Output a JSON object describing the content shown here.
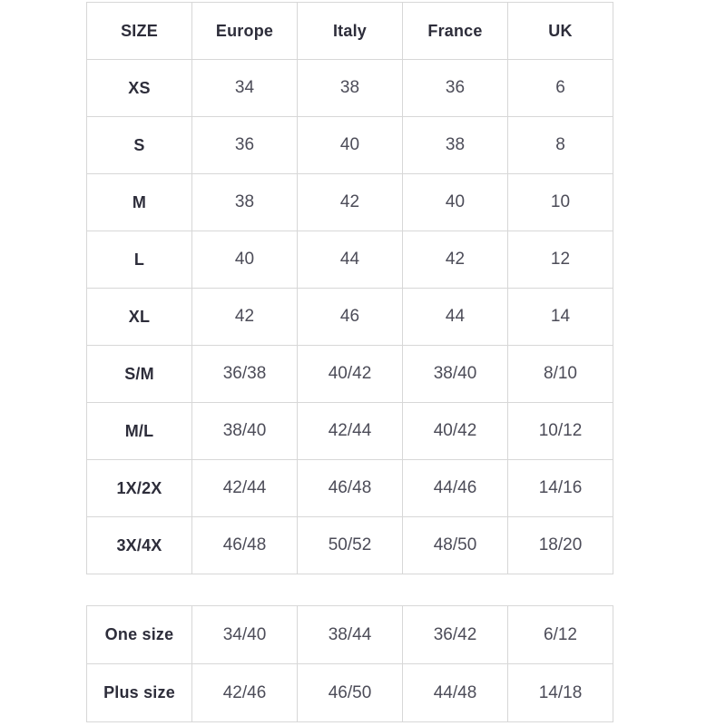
{
  "colors": {
    "border": "#d7d7d7",
    "header_text": "#2d2d3a",
    "value_text": "#4c4c58",
    "background": "#ffffff"
  },
  "chart_data": [
    {
      "type": "table",
      "name": "size-conversion-table",
      "columns": [
        "SIZE",
        "Europe",
        "Italy",
        "France",
        "UK"
      ],
      "rows": [
        [
          "XS",
          "34",
          "38",
          "36",
          "6"
        ],
        [
          "S",
          "36",
          "40",
          "38",
          "8"
        ],
        [
          "M",
          "38",
          "42",
          "40",
          "10"
        ],
        [
          "L",
          "40",
          "44",
          "42",
          "12"
        ],
        [
          "XL",
          "42",
          "46",
          "44",
          "14"
        ],
        [
          "S/M",
          "36/38",
          "40/42",
          "38/40",
          "8/10"
        ],
        [
          "M/L",
          "38/40",
          "42/44",
          "40/42",
          "10/12"
        ],
        [
          "1X/2X",
          "42/44",
          "46/48",
          "44/46",
          "14/16"
        ],
        [
          "3X/4X",
          "46/48",
          "50/52",
          "48/50",
          "18/20"
        ]
      ]
    },
    {
      "type": "table",
      "name": "special-sizes-table",
      "columns": [],
      "rows": [
        [
          "One size",
          "34/40",
          "38/44",
          "36/42",
          "6/12"
        ],
        [
          "Plus size",
          "42/46",
          "46/50",
          "44/48",
          "14/18"
        ]
      ]
    }
  ]
}
